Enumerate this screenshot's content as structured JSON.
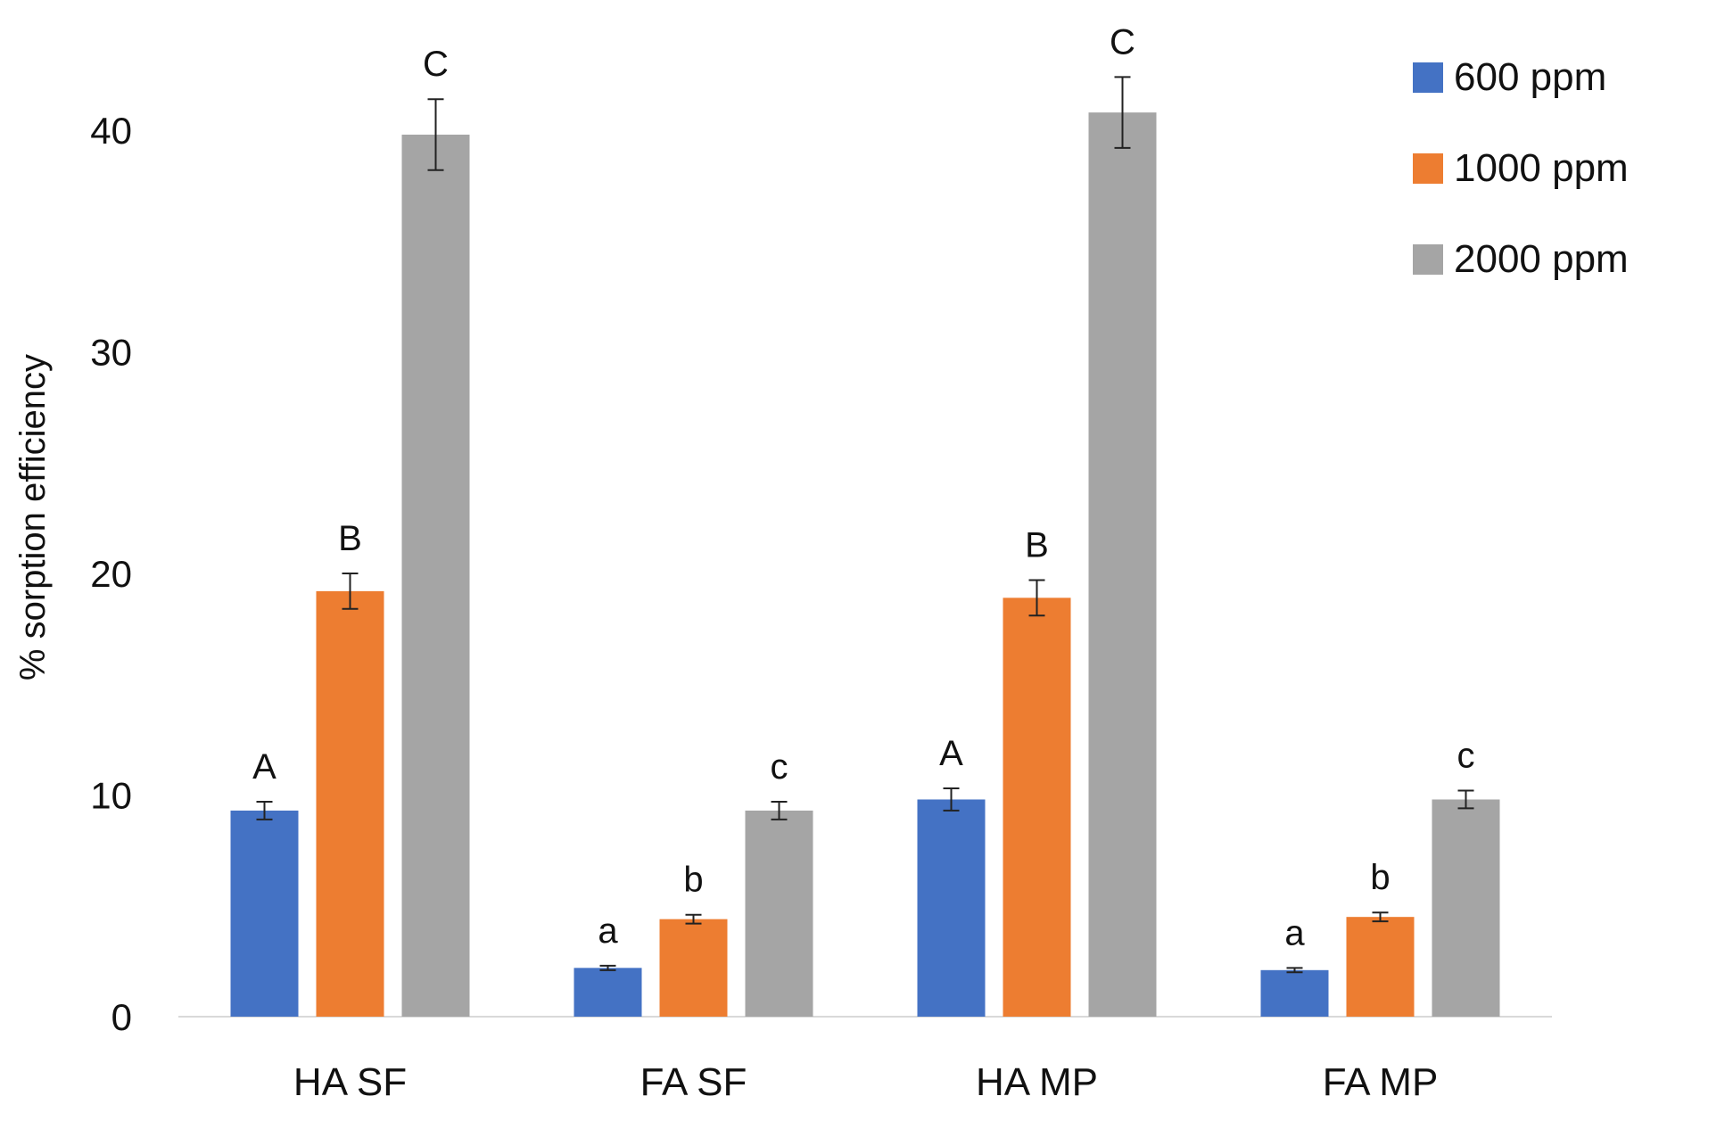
{
  "chart_data": {
    "type": "bar",
    "title": "",
    "xlabel": "",
    "ylabel": "% sorption efficiency",
    "ylim": [
      0,
      45
    ],
    "yticks": [
      0,
      10,
      20,
      30,
      40
    ],
    "grid": false,
    "legend_position": "top-right",
    "categories": [
      "HA SF",
      "FA SF",
      "HA MP",
      "FA MP"
    ],
    "series": [
      {
        "name": "600 ppm",
        "color": "#4472C4",
        "values": [
          9.3,
          2.2,
          9.8,
          2.1
        ],
        "errors": [
          0.4,
          0.1,
          0.5,
          0.1
        ],
        "letters": [
          "A",
          "a",
          "A",
          "a"
        ]
      },
      {
        "name": "1000 ppm",
        "color": "#ED7D31",
        "values": [
          19.2,
          4.4,
          18.9,
          4.5
        ],
        "errors": [
          0.8,
          0.2,
          0.8,
          0.2
        ],
        "letters": [
          "B",
          "b",
          "B",
          "b"
        ]
      },
      {
        "name": "2000 ppm",
        "color": "#A5A5A5",
        "values": [
          39.8,
          9.3,
          40.8,
          9.8
        ],
        "errors": [
          1.6,
          0.4,
          1.6,
          0.4
        ],
        "letters": [
          "C",
          "c",
          "C",
          "c"
        ]
      }
    ]
  }
}
